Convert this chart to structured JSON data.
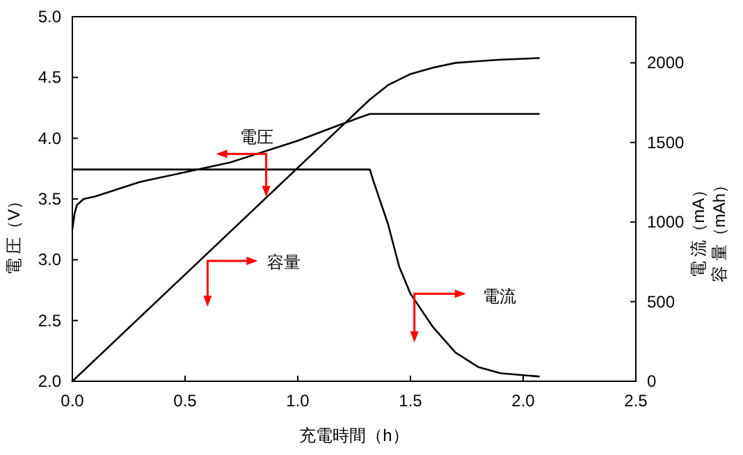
{
  "chart_data": {
    "type": "line",
    "xlabel": "充電時間（h）",
    "ylabel": "電 圧（V）",
    "y2label": "電 流（mA）容 量（mAh）",
    "xlim": [
      0,
      2.5
    ],
    "xticks": [
      {
        "value": 0,
        "label": "0.0"
      },
      0.5,
      {
        "value": 1,
        "label": "1.0"
      },
      1.5,
      {
        "value": 2,
        "label": "2.0"
      },
      2.5
    ],
    "ylim": [
      2,
      5
    ],
    "yticks": [
      {
        "value": 2,
        "label": "2.0"
      },
      2.5,
      {
        "value": 3,
        "label": "3.0"
      },
      3.5,
      {
        "value": 4,
        "label": "4.0"
      },
      4.5,
      {
        "value": 5,
        "label": "5.0"
      }
    ],
    "y2lim": [
      0,
      2290
    ],
    "y2ticks": [
      0,
      500,
      1000,
      1500,
      2000
    ],
    "grid": false,
    "marker": "none",
    "line_style": "solid",
    "series": [
      {
        "color": "#000000",
        "x": [
          0,
          0.01,
          0.02,
          0.05,
          0.1,
          0.2,
          0.3,
          0.4,
          0.5,
          0.6,
          0.7,
          0.8,
          0.9,
          1.0,
          1.1,
          1.2,
          1.32,
          1.5,
          1.8,
          2.07
        ],
        "values": [
          3.25,
          3.38,
          3.45,
          3.5,
          3.52,
          3.58,
          3.64,
          3.68,
          3.72,
          3.76,
          3.8,
          3.86,
          3.92,
          3.98,
          4.05,
          4.12,
          4.2,
          4.2,
          4.2,
          4.2
        ]
      },
      {
        "color": "#000000",
        "axis": "y2",
        "x": [
          0,
          0.5,
          1.0,
          1.31,
          1.32,
          1.335,
          1.4,
          1.45,
          1.5,
          1.6,
          1.7,
          1.8,
          1.9,
          2.07
        ],
        "values": [
          1330,
          1330,
          1330,
          1330,
          1330,
          1260,
          990,
          720,
          550,
          340,
          180,
          90,
          50,
          30
        ]
      },
      {
        "color": "#000000",
        "axis": "y2",
        "x": [
          0,
          1.32,
          1.4,
          1.5,
          1.6,
          1.7,
          1.8,
          1.9,
          2.07
        ],
        "values": [
          0,
          1770,
          1860,
          1930,
          1970,
          2000,
          2010,
          2020,
          2030
        ]
      }
    ],
    "annotations": [
      {
        "text": "電圧",
        "x": 0.86,
        "y": 3.87
      },
      "容量",
      "電流"
    ]
  }
}
